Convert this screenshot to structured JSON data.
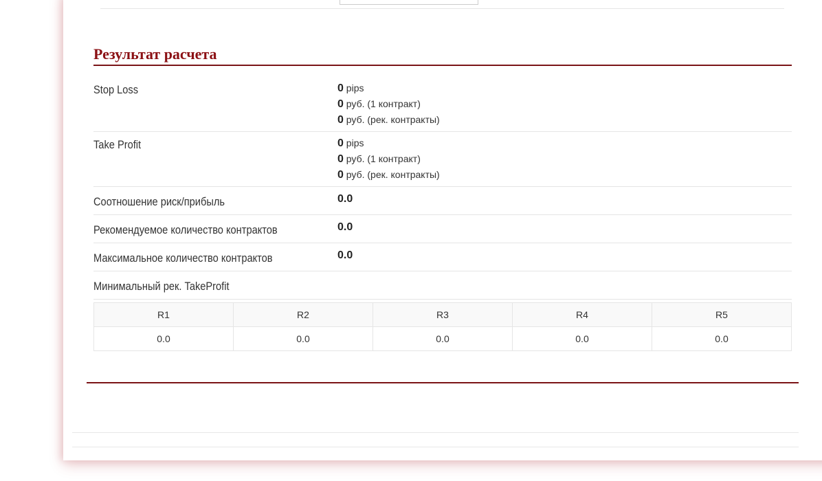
{
  "title": "Результат расчета",
  "stop_loss": {
    "label": "Stop Loss",
    "pips": "0",
    "pips_unit": "pips",
    "rub1": "0",
    "rub1_unit": "руб. (1 контракт)",
    "rubrec": "0",
    "rubrec_unit": "руб. (рек. контракты)"
  },
  "take_profit": {
    "label": "Take Profit",
    "pips": "0",
    "pips_unit": "pips",
    "rub1": "0",
    "rub1_unit": "руб. (1 контракт)",
    "rubrec": "0",
    "rubrec_unit": "руб. (рек. контракты)"
  },
  "ratio": {
    "label": "Соотношение риск/прибыль",
    "value": "0.0"
  },
  "recommended": {
    "label": "Рекомендуемое количество контрактов",
    "value": "0.0"
  },
  "maximum": {
    "label": "Максимальное количество контрактов",
    "value": "0.0"
  },
  "min_tp": {
    "label": "Минимальный рек. TakeProfit"
  },
  "r_table": {
    "headers": [
      "R1",
      "R2",
      "R3",
      "R4",
      "R5"
    ],
    "values": [
      "0.0",
      "0.0",
      "0.0",
      "0.0",
      "0.0"
    ]
  },
  "colors": {
    "accent": "#8b1014"
  }
}
